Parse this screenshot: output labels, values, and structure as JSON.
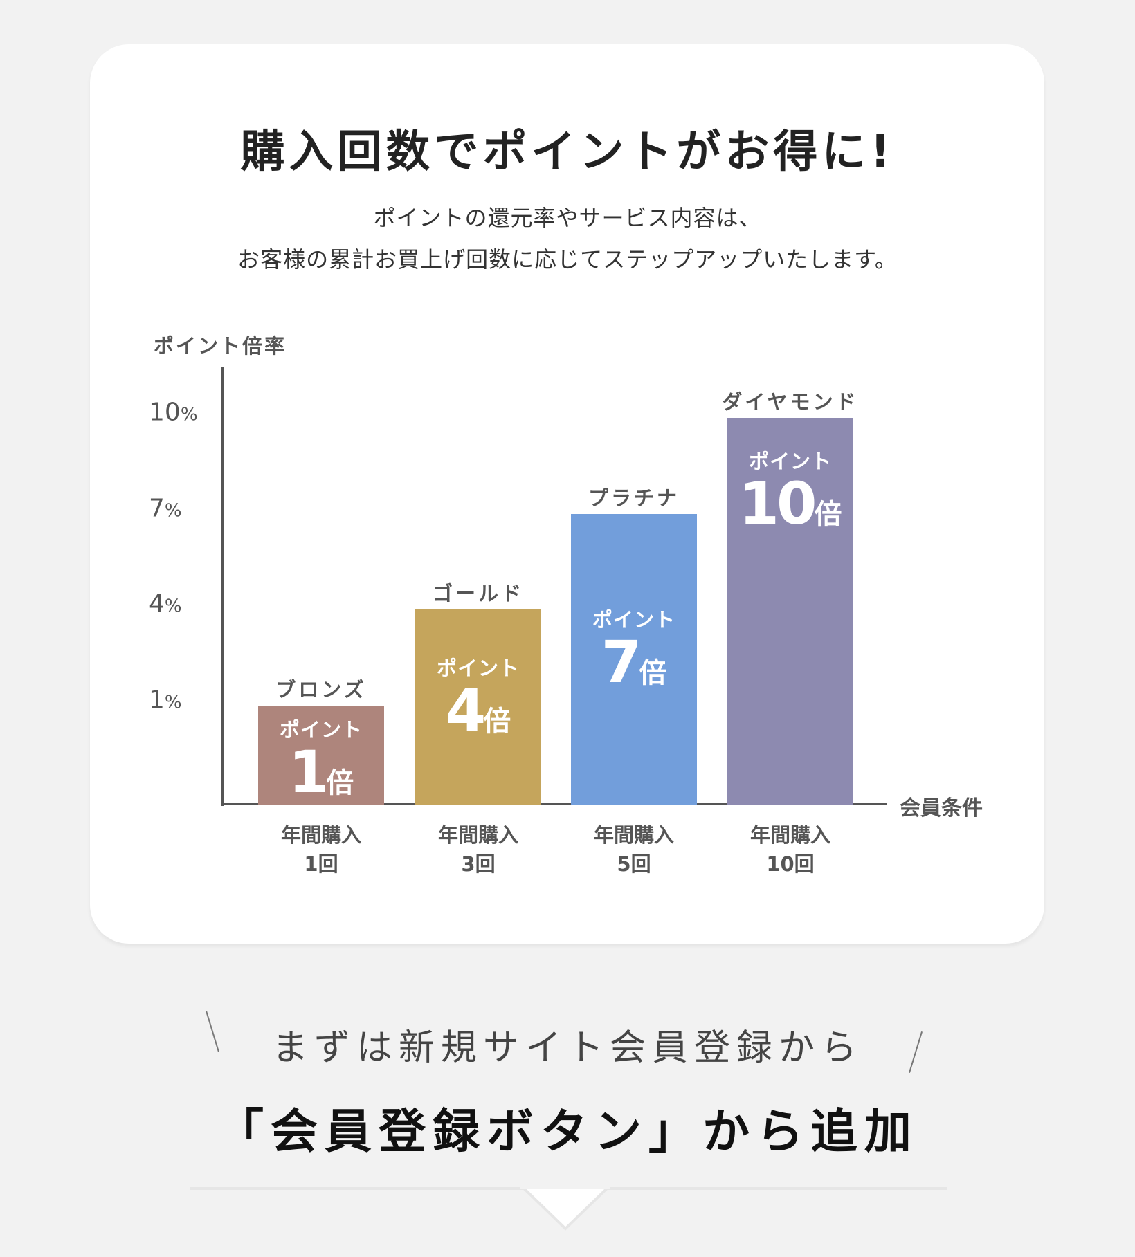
{
  "header": {
    "title": "購入回数でポイントがお得に!",
    "subtitle_line1": "ポイントの還元率やサービス内容は、",
    "subtitle_line2": "お客様の累計お買上げ回数に応じてステップアップいたします。"
  },
  "chart_data": {
    "type": "bar",
    "ylabel": "ポイント倍率",
    "xlabel": "会員条件",
    "yticks": [
      {
        "value": 10,
        "num": "10",
        "unit": "%"
      },
      {
        "value": 7,
        "num": "7",
        "unit": "%"
      },
      {
        "value": 4,
        "num": "4",
        "unit": "%"
      },
      {
        "value": 1,
        "num": "1",
        "unit": "%"
      }
    ],
    "ylim": [
      0,
      10
    ],
    "bars": [
      {
        "tier": "ブロンズ",
        "value": 1,
        "inner_label": "ポイント",
        "multiplier": "1",
        "unit": "倍",
        "condition": "年間購入",
        "count": "1回",
        "color": "#ae857c"
      },
      {
        "tier": "ゴールド",
        "value": 4,
        "inner_label": "ポイント",
        "multiplier": "4",
        "unit": "倍",
        "condition": "年間購入",
        "count": "3回",
        "color": "#c5a55c"
      },
      {
        "tier": "プラチナ",
        "value": 7,
        "inner_label": "ポイント",
        "multiplier": "7",
        "unit": "倍",
        "condition": "年間購入",
        "count": "5回",
        "color": "#729edb"
      },
      {
        "tier": "ダイヤモンド",
        "value": 10,
        "inner_label": "ポイント",
        "multiplier": "10",
        "unit": "倍",
        "condition": "年間購入",
        "count": "10回",
        "color": "#8d8ab0"
      }
    ]
  },
  "cta": {
    "lead": "まずは新規サイト会員登録から",
    "main": "「会員登録ボタン」から追加"
  }
}
